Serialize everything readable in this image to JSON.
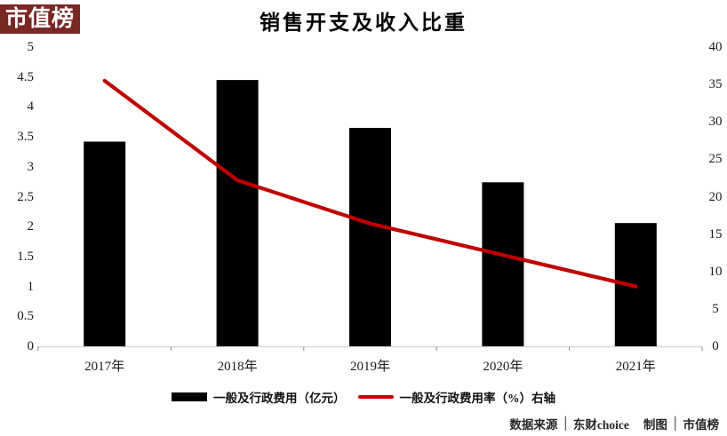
{
  "logo": {
    "text": "市值榜"
  },
  "colors": {
    "logo_bg": "#7a2824",
    "logo_text": "#ffffff",
    "bar": "#000000",
    "line": "#c00000",
    "axis_line": "#d9d9d9",
    "tick": "#8c8c8c",
    "text": "#1a1a1a",
    "footer_text": "#262626"
  },
  "chart_data": {
    "type": "bar",
    "title": "销售开支及收入比重",
    "categories": [
      "2017年",
      "2018年",
      "2019年",
      "2020年",
      "2021年"
    ],
    "series": [
      {
        "name": "一般及行政费用（亿元）",
        "type": "bar",
        "axis": "left",
        "color": "#000000",
        "values": [
          3.42,
          4.45,
          3.65,
          2.74,
          2.06
        ]
      },
      {
        "name": "一般及行政费用率（%）右轴",
        "type": "line",
        "axis": "right",
        "color": "#c00000",
        "values": [
          35.5,
          22.2,
          16.4,
          12.2,
          8.0
        ]
      }
    ],
    "left_axis": {
      "min": 0,
      "max": 5,
      "ticks": [
        "5",
        "4.5",
        "4",
        "3.5",
        "3",
        "2.5",
        "2",
        "1.5",
        "1",
        "0.5",
        "0"
      ]
    },
    "right_axis": {
      "min": 0,
      "max": 40,
      "ticks": [
        "40",
        "35",
        "30",
        "25",
        "20",
        "15",
        "10",
        "5",
        "0"
      ]
    },
    "grid": false,
    "legend_position": "bottom"
  },
  "legend": {
    "items": [
      {
        "label": "一般及行政费用（亿元）",
        "swatch": "bar"
      },
      {
        "label": "一般及行政费用率（%）右轴",
        "swatch": "line"
      }
    ]
  },
  "footer": {
    "source_label": "数据来源",
    "source_value": "东财choice",
    "credit_label": "制图",
    "credit_value": "市值榜",
    "divider": "│"
  }
}
